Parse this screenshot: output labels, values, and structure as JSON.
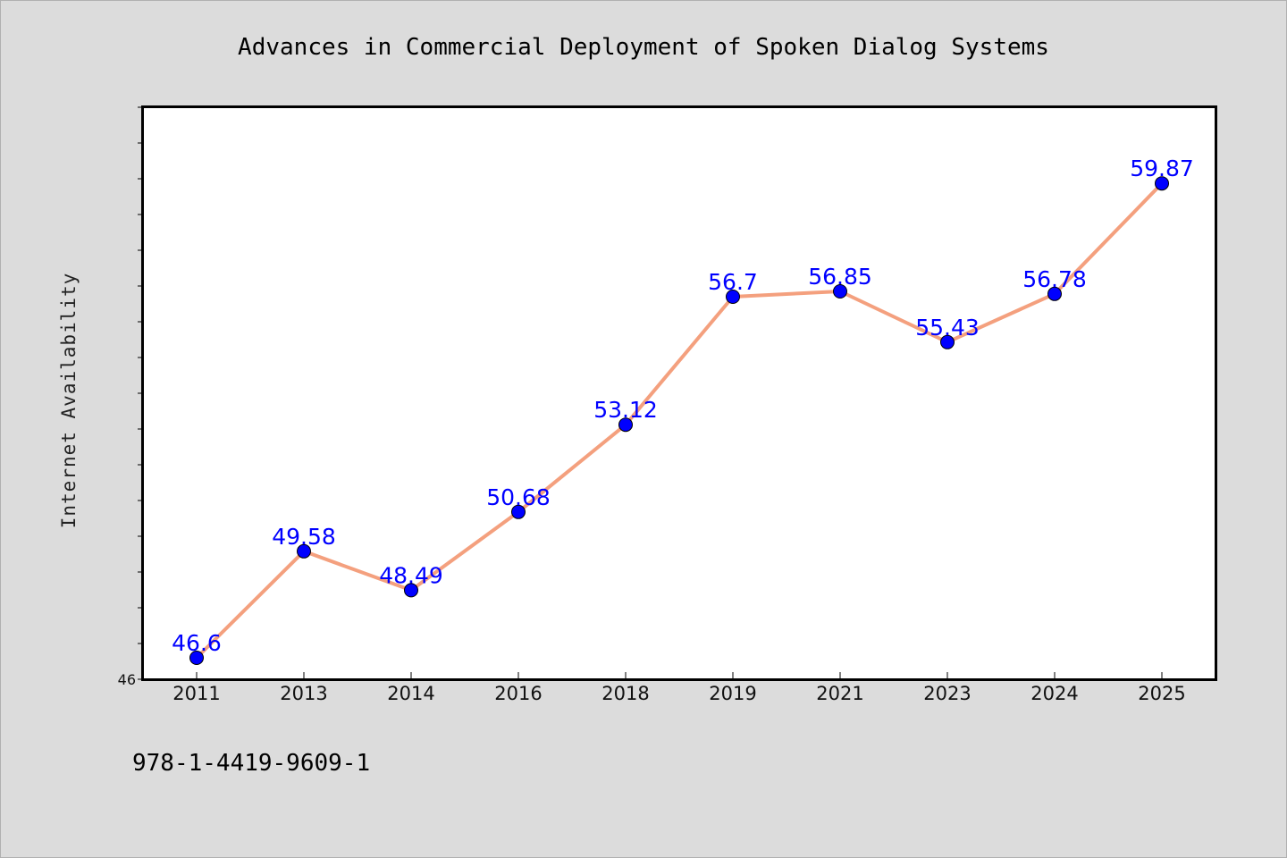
{
  "chart_data": {
    "type": "line",
    "title": "Advances in Commercial Deployment of Spoken Dialog Systems",
    "xlabel": "",
    "ylabel": "Internet Availability",
    "categories": [
      "2011",
      "2013",
      "2014",
      "2016",
      "2018",
      "2019",
      "2021",
      "2023",
      "2024",
      "2025"
    ],
    "values": [
      46.6,
      49.58,
      48.49,
      50.68,
      53.12,
      56.7,
      56.85,
      55.43,
      56.78,
      59.87
    ],
    "data_labels": [
      "46.6",
      "49.58",
      "48.49",
      "50.68",
      "53.12",
      "56.7",
      "56.85",
      "55.43",
      "56.78",
      "59.87"
    ],
    "ylim": [
      46,
      62
    ],
    "y_tick_labels": [
      "46"
    ],
    "grid": false,
    "legend": "none",
    "line_color": "#f4a07e",
    "marker_color": "#0000ff",
    "label_color": "#0000ff",
    "plot_background": "#ffffff",
    "page_background": "#dcdcdc"
  },
  "footnote": "978-1-4419-9609-1"
}
